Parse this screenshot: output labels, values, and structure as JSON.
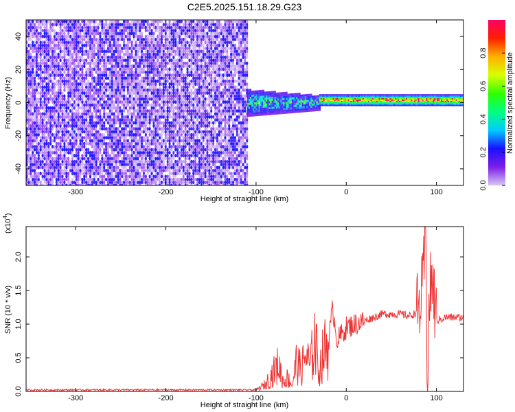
{
  "figure": {
    "title": "C2E5.2025.151.18.29.G23"
  },
  "chart_data": [
    {
      "type": "heatmap",
      "xlabel": "Height of straight line (km)",
      "ylabel": "Frequency (Hz)",
      "xlim": [
        -355,
        130
      ],
      "ylim": [
        -50,
        50
      ],
      "xticks": [
        -300,
        -200,
        -100,
        0,
        100
      ],
      "yticks": [
        -40,
        -20,
        0,
        20,
        40
      ],
      "colorbar": {
        "label": "Normalized spectral amplitude",
        "range": [
          0,
          1
        ],
        "ticks": [
          "0.0",
          "0.2",
          "0.4",
          "0.6",
          "0.8"
        ],
        "colors": [
          "#d9c6f7",
          "#7d1ee8",
          "#1a10ff",
          "#00ccff",
          "#00ff80",
          "#30ff00",
          "#d8ff00",
          "#ffb000",
          "#ff2000",
          "#ff0066"
        ]
      },
      "regions": [
        {
          "x_range": [
            -355,
            -110
          ],
          "y_range": [
            -50,
            50
          ],
          "description_amplitude": [
            0.0,
            0.15
          ]
        },
        {
          "x_range": [
            -110,
            -30
          ],
          "y_range": [
            -8,
            8
          ],
          "description_amplitude": [
            0.2,
            0.55
          ]
        },
        {
          "x_range": [
            -30,
            130
          ],
          "y_center": 1.5,
          "y_halfwidth": 2,
          "description_amplitude": [
            0.4,
            0.95
          ]
        }
      ],
      "grid": false
    },
    {
      "type": "line",
      "xlabel": "Height of straight line (km)",
      "ylabel": "SNR (10 * v/v)",
      "y_multiplier": "(x10",
      "y_multiplier_exp": "4",
      "y_multiplier_close": ")",
      "xlim": [
        -355,
        130
      ],
      "ylim": [
        0,
        2.45
      ],
      "xticks": [
        -300,
        -200,
        -100,
        0,
        100
      ],
      "yticks": [
        "0.0",
        "0.5",
        "1.0",
        "1.5",
        "2.0"
      ],
      "color": "#ee3333",
      "series": [
        {
          "x": [
            -355,
            -100,
            -90,
            -80,
            -75,
            -70,
            -65,
            -60,
            -55,
            -50,
            -45,
            -40,
            -35,
            -30,
            -25,
            -20,
            -15,
            -10,
            -5,
            0,
            10,
            20,
            30,
            40,
            50,
            60,
            70,
            75,
            80,
            85,
            88,
            90,
            92,
            95,
            100,
            110,
            120,
            130
          ],
          "y": [
            0.0,
            0.02,
            0.1,
            0.3,
            0.4,
            0.15,
            0.2,
            0.1,
            0.45,
            0.3,
            0.55,
            0.35,
            0.8,
            0.3,
            0.6,
            0.7,
            1.25,
            0.75,
            0.85,
            0.95,
            1.0,
            1.05,
            1.1,
            1.15,
            1.15,
            1.15,
            1.12,
            1.15,
            1.2,
            1.5,
            2.45,
            0.1,
            1.3,
            1.7,
            1.05,
            1.1,
            1.1,
            1.1
          ]
        }
      ],
      "grid": false
    }
  ]
}
